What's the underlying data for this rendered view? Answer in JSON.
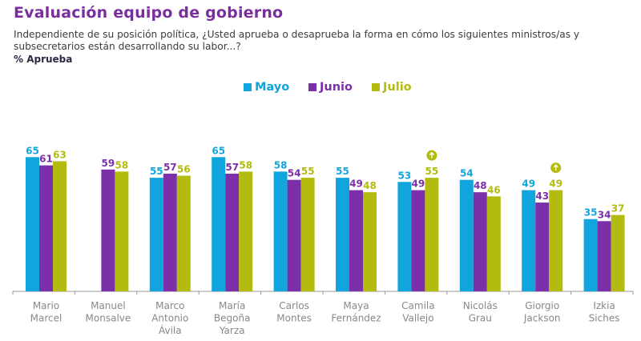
{
  "header": {
    "title": "Evaluación equipo de gobierno",
    "subtitle": "Independiente de su posición política, ¿Usted aprueba o desaprueba la forma en cómo los siguientes ministros/as y subsecretarios están desarrollando su labor...?",
    "measure": "% Aprueba"
  },
  "colors": {
    "title": "#7a2e9e",
    "Mayo": "#12a4dc",
    "Junio": "#7b2fa8",
    "Julio": "#b3bb0e"
  },
  "chart_data": {
    "type": "bar",
    "title": "Evaluación equipo de gobierno",
    "xlabel": "",
    "ylabel": "% Aprueba",
    "ylim": [
      0,
      70
    ],
    "grid": false,
    "legend": "top-center",
    "categories": [
      [
        "Mario",
        "Marcel"
      ],
      [
        "Manuel",
        "Monsalve"
      ],
      [
        "Marco",
        "Antonio",
        "Ávila"
      ],
      [
        "María",
        "Begoña",
        "Yarza"
      ],
      [
        "Carlos",
        "Montes"
      ],
      [
        "Maya",
        "Fernández"
      ],
      [
        "Camila",
        "Vallejo"
      ],
      [
        "Nicolás",
        "Grau"
      ],
      [
        "Giorgio",
        "Jackson"
      ],
      [
        "Izkia",
        "Siches"
      ]
    ],
    "series": [
      {
        "name": "Mayo",
        "values": [
          65,
          null,
          55,
          65,
          58,
          55,
          53,
          54,
          49,
          35
        ]
      },
      {
        "name": "Junio",
        "values": [
          61,
          59,
          57,
          57,
          54,
          49,
          49,
          48,
          43,
          34
        ]
      },
      {
        "name": "Julio",
        "values": [
          63,
          58,
          56,
          58,
          55,
          48,
          55,
          46,
          49,
          37
        ]
      }
    ],
    "annotations": [
      {
        "category_index": 6,
        "series": "Julio",
        "icon": "arrow-up-icon",
        "meaning": "significant increase"
      },
      {
        "category_index": 8,
        "series": "Julio",
        "icon": "arrow-up-icon",
        "meaning": "significant increase"
      }
    ]
  }
}
